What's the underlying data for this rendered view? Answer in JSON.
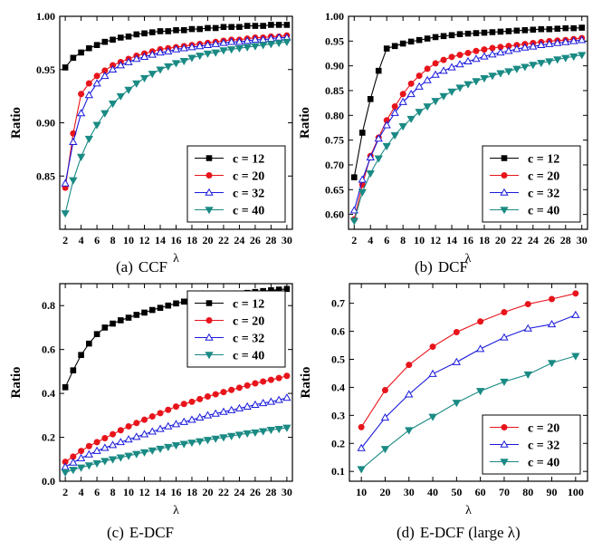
{
  "colors": {
    "c12": "#000000",
    "c20": "#e8141b",
    "c32": "#1a1adc",
    "c40": "#1a8a84"
  },
  "captions": [
    {
      "tag": "(a)",
      "text": "CCF"
    },
    {
      "tag": "(b)",
      "text": "DCF"
    },
    {
      "tag": "(c)",
      "text": "E-DCF"
    },
    {
      "tag": "(d)",
      "text": "E-DCF (large λ)"
    }
  ],
  "chart_data": [
    {
      "type": "line",
      "xlabel": "λ",
      "ylabel": "Ratio",
      "x": [
        2,
        3,
        4,
        5,
        6,
        7,
        8,
        9,
        10,
        11,
        12,
        13,
        14,
        15,
        16,
        17,
        18,
        19,
        20,
        21,
        22,
        23,
        24,
        25,
        26,
        27,
        28,
        29,
        30
      ],
      "xlim": [
        1.3,
        30.7
      ],
      "ylim": [
        0.8,
        1.0
      ],
      "xticks": [
        2,
        4,
        6,
        8,
        10,
        12,
        14,
        16,
        18,
        20,
        22,
        24,
        26,
        28,
        30
      ],
      "yticks": [
        0.85,
        0.9,
        0.95,
        1.0
      ],
      "ytick_labels": [
        "0.85",
        "0.90",
        "0.95",
        "1.00"
      ],
      "legend_position": "bottom-right",
      "grid": false,
      "series": [
        {
          "name": "c = 12",
          "color_key": "c12",
          "marker": "square",
          "values": [
            0.952,
            0.961,
            0.966,
            0.97,
            0.973,
            0.976,
            0.978,
            0.98,
            0.981,
            0.983,
            0.984,
            0.985,
            0.986,
            0.986,
            0.987,
            0.987,
            0.988,
            0.988,
            0.989,
            0.989,
            0.99,
            0.99,
            0.99,
            0.991,
            0.991,
            0.991,
            0.992,
            0.992,
            0.992
          ]
        },
        {
          "name": "c = 20",
          "color_key": "c20",
          "marker": "circle",
          "values": [
            0.839,
            0.89,
            0.927,
            0.937,
            0.944,
            0.949,
            0.954,
            0.957,
            0.96,
            0.963,
            0.965,
            0.967,
            0.969,
            0.97,
            0.971,
            0.972,
            0.973,
            0.974,
            0.975,
            0.976,
            0.977,
            0.978,
            0.978,
            0.979,
            0.98,
            0.98,
            0.981,
            0.981,
            0.982
          ]
        },
        {
          "name": "c = 32",
          "color_key": "c32",
          "marker": "triangle-up",
          "values": [
            0.843,
            0.882,
            0.909,
            0.926,
            0.937,
            0.944,
            0.95,
            0.954,
            0.957,
            0.96,
            0.962,
            0.964,
            0.966,
            0.967,
            0.969,
            0.97,
            0.971,
            0.972,
            0.973,
            0.974,
            0.975,
            0.976,
            0.976,
            0.977,
            0.978,
            0.978,
            0.979,
            0.98,
            0.98
          ]
        },
        {
          "name": "c = 40",
          "color_key": "c40",
          "marker": "triangle-down",
          "values": [
            0.815,
            0.846,
            0.868,
            0.885,
            0.898,
            0.909,
            0.918,
            0.925,
            0.931,
            0.937,
            0.942,
            0.946,
            0.95,
            0.953,
            0.956,
            0.958,
            0.961,
            0.963,
            0.965,
            0.966,
            0.968,
            0.969,
            0.97,
            0.971,
            0.972,
            0.973,
            0.974,
            0.975,
            0.976
          ]
        }
      ]
    },
    {
      "type": "line",
      "xlabel": "λ",
      "ylabel": "Ratio",
      "x": [
        2,
        3,
        4,
        5,
        6,
        7,
        8,
        9,
        10,
        11,
        12,
        13,
        14,
        15,
        16,
        17,
        18,
        19,
        20,
        21,
        22,
        23,
        24,
        25,
        26,
        27,
        28,
        29,
        30
      ],
      "xlim": [
        1.3,
        30.7
      ],
      "ylim": [
        0.57,
        1.0
      ],
      "xticks": [
        2,
        4,
        6,
        8,
        10,
        12,
        14,
        16,
        18,
        20,
        22,
        24,
        26,
        28,
        30
      ],
      "yticks": [
        0.6,
        0.65,
        0.7,
        0.75,
        0.8,
        0.85,
        0.9,
        0.95,
        1.0
      ],
      "ytick_labels": [
        "0.60",
        "0.65",
        "0.70",
        "0.75",
        "0.80",
        "0.85",
        "0.90",
        "0.95",
        "1.00"
      ],
      "legend_position": "bottom-right",
      "grid": false,
      "series": [
        {
          "name": "c = 12",
          "color_key": "c12",
          "marker": "square",
          "values": [
            0.675,
            0.765,
            0.833,
            0.89,
            0.935,
            0.94,
            0.945,
            0.949,
            0.952,
            0.955,
            0.958,
            0.96,
            0.962,
            0.964,
            0.965,
            0.966,
            0.967,
            0.968,
            0.969,
            0.97,
            0.971,
            0.972,
            0.973,
            0.974,
            0.974,
            0.975,
            0.976,
            0.976,
            0.977
          ]
        },
        {
          "name": "c = 20",
          "color_key": "c20",
          "marker": "circle",
          "values": [
            0.59,
            0.66,
            0.718,
            0.755,
            0.79,
            0.818,
            0.843,
            0.864,
            0.88,
            0.894,
            0.905,
            0.912,
            0.918,
            0.922,
            0.926,
            0.93,
            0.933,
            0.936,
            0.938,
            0.94,
            0.942,
            0.944,
            0.946,
            0.948,
            0.95,
            0.951,
            0.952,
            0.954,
            0.956
          ]
        },
        {
          "name": "c = 32",
          "color_key": "c32",
          "marker": "triangle-up",
          "values": [
            0.608,
            0.67,
            0.715,
            0.753,
            0.78,
            0.805,
            0.827,
            0.843,
            0.858,
            0.871,
            0.882,
            0.89,
            0.897,
            0.903,
            0.909,
            0.914,
            0.919,
            0.923,
            0.927,
            0.93,
            0.934,
            0.937,
            0.939,
            0.942,
            0.944,
            0.946,
            0.948,
            0.95,
            0.952
          ]
        },
        {
          "name": "c = 40",
          "color_key": "c40",
          "marker": "triangle-down",
          "values": [
            0.587,
            0.645,
            0.683,
            0.713,
            0.738,
            0.76,
            0.778,
            0.793,
            0.807,
            0.818,
            0.829,
            0.839,
            0.848,
            0.856,
            0.863,
            0.869,
            0.875,
            0.88,
            0.885,
            0.889,
            0.894,
            0.898,
            0.902,
            0.906,
            0.909,
            0.913,
            0.916,
            0.919,
            0.922
          ]
        }
      ]
    },
    {
      "type": "line",
      "xlabel": "λ",
      "ylabel": "Ratio",
      "x": [
        2,
        3,
        4,
        5,
        6,
        7,
        8,
        9,
        10,
        11,
        12,
        13,
        14,
        15,
        16,
        17,
        18,
        19,
        20,
        21,
        22,
        23,
        24,
        25,
        26,
        27,
        28,
        29,
        30
      ],
      "xlim": [
        1.3,
        30.7
      ],
      "ylim": [
        0.0,
        0.9
      ],
      "xticks": [
        2,
        4,
        6,
        8,
        10,
        12,
        14,
        16,
        18,
        20,
        22,
        24,
        26,
        28,
        30
      ],
      "yticks": [
        0.0,
        0.2,
        0.4,
        0.6,
        0.8
      ],
      "ytick_labels": [
        "0.0",
        "0.2",
        "0.4",
        "0.6",
        "0.8"
      ],
      "legend_position": "top-right",
      "grid": false,
      "series": [
        {
          "name": "c = 12",
          "color_key": "c12",
          "marker": "square",
          "values": [
            0.428,
            0.505,
            0.575,
            0.627,
            0.67,
            0.7,
            0.718,
            0.733,
            0.745,
            0.758,
            0.768,
            0.78,
            0.79,
            0.8,
            0.81,
            0.818,
            0.825,
            0.83,
            0.835,
            0.84,
            0.845,
            0.85,
            0.855,
            0.858,
            0.862,
            0.866,
            0.87,
            0.873,
            0.876
          ]
        },
        {
          "name": "c = 20",
          "color_key": "c20",
          "marker": "circle",
          "values": [
            0.088,
            0.112,
            0.138,
            0.16,
            0.178,
            0.196,
            0.214,
            0.232,
            0.25,
            0.265,
            0.28,
            0.295,
            0.31,
            0.325,
            0.34,
            0.352,
            0.362,
            0.374,
            0.386,
            0.396,
            0.406,
            0.416,
            0.426,
            0.436,
            0.446,
            0.454,
            0.462,
            0.47,
            0.48
          ]
        },
        {
          "name": "c = 32",
          "color_key": "c32",
          "marker": "triangle-up",
          "values": [
            0.065,
            0.085,
            0.105,
            0.122,
            0.138,
            0.152,
            0.165,
            0.178,
            0.19,
            0.202,
            0.214,
            0.226,
            0.238,
            0.25,
            0.26,
            0.27,
            0.28,
            0.29,
            0.3,
            0.308,
            0.316,
            0.324,
            0.332,
            0.34,
            0.348,
            0.356,
            0.362,
            0.37,
            0.38
          ]
        },
        {
          "name": "c = 40",
          "color_key": "c40",
          "marker": "triangle-down",
          "values": [
            0.04,
            0.052,
            0.062,
            0.072,
            0.082,
            0.092,
            0.1,
            0.108,
            0.116,
            0.124,
            0.132,
            0.14,
            0.148,
            0.156,
            0.164,
            0.17,
            0.176,
            0.182,
            0.188,
            0.194,
            0.2,
            0.206,
            0.212,
            0.218,
            0.222,
            0.228,
            0.234,
            0.238,
            0.244
          ]
        }
      ]
    },
    {
      "type": "line",
      "xlabel": "λ",
      "ylabel": "Ratio",
      "x": [
        10,
        20,
        30,
        40,
        50,
        60,
        70,
        80,
        90,
        100
      ],
      "xlim": [
        5,
        105
      ],
      "ylim": [
        0.065,
        0.77
      ],
      "xticks": [
        10,
        20,
        30,
        40,
        50,
        60,
        70,
        80,
        90,
        100
      ],
      "yticks": [
        0.1,
        0.2,
        0.3,
        0.4,
        0.5,
        0.6,
        0.7
      ],
      "ytick_labels": [
        "0.1",
        "0.2",
        "0.3",
        "0.4",
        "0.5",
        "0.6",
        "0.7"
      ],
      "legend_position": "bottom-right",
      "grid": false,
      "series": [
        {
          "name": "c = 20",
          "color_key": "c20",
          "marker": "circle",
          "values": [
            0.258,
            0.39,
            0.48,
            0.545,
            0.597,
            0.635,
            0.668,
            0.697,
            0.715,
            0.735
          ]
        },
        {
          "name": "c = 32",
          "color_key": "c32",
          "marker": "triangle-up",
          "values": [
            0.183,
            0.292,
            0.375,
            0.448,
            0.49,
            0.537,
            0.578,
            0.61,
            0.625,
            0.658
          ]
        },
        {
          "name": "c = 40",
          "color_key": "c40",
          "marker": "triangle-down",
          "values": [
            0.108,
            0.18,
            0.247,
            0.295,
            0.345,
            0.387,
            0.42,
            0.446,
            0.487,
            0.512
          ]
        }
      ]
    }
  ]
}
